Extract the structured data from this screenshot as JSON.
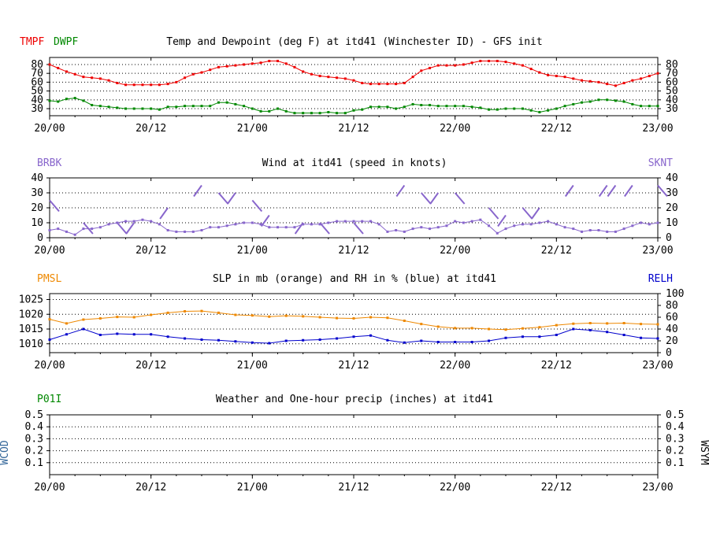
{
  "colors": {
    "temp": "#ee0000",
    "dewpoint": "#008800",
    "wind": "#8866cc",
    "pressure": "#ee8800",
    "rh": "#0000cc",
    "precip": "#008800",
    "wcod": "#336699",
    "axis": "#000000",
    "grid": "#000000"
  },
  "x_ticks": [
    "20/00",
    "20/12",
    "21/00",
    "21/12",
    "22/00",
    "22/12",
    "23/00"
  ],
  "chart_data": [
    {
      "id": "temp",
      "type": "line",
      "title": "Temp and Dewpoint (deg F) at itd41 (Winchester ID) - GFS init",
      "left_labels": [
        "TMPF",
        "DWPF"
      ],
      "right_label": "",
      "x_unit": "hours",
      "x_range": [
        0,
        72
      ],
      "ylim": [
        22,
        88
      ],
      "yticks": [
        30,
        40,
        50,
        60,
        70,
        80
      ],
      "right_yticks": [
        30,
        40,
        50,
        60,
        70,
        80
      ],
      "grid": "dotted",
      "series": [
        {
          "name": "TMPF",
          "color_key": "temp",
          "x": [
            0,
            1,
            2,
            3,
            4,
            5,
            6,
            7,
            8,
            9,
            10,
            11,
            12,
            13,
            14,
            15,
            16,
            17,
            18,
            19,
            20,
            21,
            22,
            23,
            24,
            25,
            26,
            27,
            28,
            29,
            30,
            31,
            32,
            33,
            34,
            35,
            36,
            37,
            38,
            39,
            40,
            41,
            42,
            43,
            44,
            45,
            46,
            47,
            48,
            49,
            50,
            51,
            52,
            53,
            54,
            55,
            56,
            57,
            58,
            59,
            60,
            61,
            62,
            63,
            64,
            65,
            66,
            67,
            68,
            69,
            70,
            71,
            72
          ],
          "values": [
            80,
            76,
            72,
            69,
            66,
            65,
            64,
            62,
            59,
            57,
            57,
            57,
            57,
            57,
            58,
            60,
            65,
            69,
            71,
            74,
            77,
            78,
            79,
            80,
            81,
            82,
            84,
            84,
            81,
            77,
            72,
            69,
            67,
            66,
            65,
            64,
            62,
            59,
            58,
            58,
            58,
            58,
            59,
            66,
            73,
            76,
            79,
            79,
            79,
            80,
            82,
            84,
            84,
            84,
            83,
            81,
            79,
            75,
            71,
            68,
            67,
            66,
            64,
            62,
            61,
            60,
            58,
            56,
            59,
            62,
            64,
            67,
            70
          ]
        },
        {
          "name": "DWPF",
          "color_key": "dewpoint",
          "x": [
            0,
            1,
            2,
            3,
            4,
            5,
            6,
            7,
            8,
            9,
            10,
            11,
            12,
            13,
            14,
            15,
            16,
            17,
            18,
            19,
            20,
            21,
            22,
            23,
            24,
            25,
            26,
            27,
            28,
            29,
            30,
            31,
            32,
            33,
            34,
            35,
            36,
            37,
            38,
            39,
            40,
            41,
            42,
            43,
            44,
            45,
            46,
            47,
            48,
            49,
            50,
            51,
            52,
            53,
            54,
            55,
            56,
            57,
            58,
            59,
            60,
            61,
            62,
            63,
            64,
            65,
            66,
            67,
            68,
            69,
            70,
            71,
            72
          ],
          "values": [
            39,
            38,
            41,
            42,
            39,
            34,
            33,
            32,
            31,
            30,
            30,
            30,
            30,
            29,
            32,
            32,
            33,
            33,
            33,
            33,
            37,
            37,
            35,
            33,
            30,
            27,
            27,
            30,
            27,
            25,
            25,
            25,
            25,
            26,
            25,
            25,
            28,
            29,
            32,
            32,
            32,
            30,
            32,
            35,
            34,
            34,
            33,
            33,
            33,
            33,
            32,
            31,
            29,
            29,
            30,
            30,
            30,
            28,
            26,
            28,
            30,
            33,
            35,
            37,
            38,
            40,
            40,
            39,
            38,
            35,
            33,
            33,
            33
          ]
        }
      ]
    },
    {
      "id": "wind",
      "type": "line",
      "title": "Wind at  itd41 (speed in knots)",
      "left_labels": [
        "BRBK"
      ],
      "right_label": "SKNT",
      "x_unit": "hours",
      "x_range": [
        0,
        72
      ],
      "ylim": [
        0,
        40
      ],
      "yticks": [
        0,
        10,
        20,
        30,
        40
      ],
      "right_yticks": [
        0,
        10,
        20,
        30,
        40
      ],
      "grid": "dotted",
      "series": [
        {
          "name": "SKNT",
          "color_key": "wind",
          "x": [
            0,
            1,
            2,
            3,
            4,
            5,
            6,
            7,
            8,
            9,
            10,
            11,
            12,
            13,
            14,
            15,
            16,
            17,
            18,
            19,
            20,
            21,
            22,
            23,
            24,
            25,
            26,
            27,
            28,
            29,
            30,
            31,
            32,
            33,
            34,
            35,
            36,
            37,
            38,
            39,
            40,
            41,
            42,
            43,
            44,
            45,
            46,
            47,
            48,
            49,
            50,
            51,
            52,
            53,
            54,
            55,
            56,
            57,
            58,
            59,
            60,
            61,
            62,
            63,
            64,
            65,
            66,
            67,
            68,
            69,
            70,
            71,
            72
          ],
          "values": [
            5,
            6,
            4,
            2,
            6,
            6,
            7,
            9,
            10,
            11,
            11,
            12,
            11,
            9,
            5,
            4,
            4,
            4,
            5,
            7,
            7,
            8,
            9,
            10,
            10,
            9,
            7,
            7,
            7,
            7,
            9,
            9,
            9,
            10,
            11,
            11,
            11,
            11,
            11,
            9,
            4,
            5,
            4,
            6,
            7,
            6,
            7,
            8,
            11,
            10,
            11,
            12,
            8,
            3,
            6,
            8,
            9,
            9,
            10,
            11,
            9,
            7,
            6,
            4,
            5,
            5,
            4,
            4,
            6,
            8,
            10,
            9,
            10
          ]
        }
      ],
      "barbs": [
        {
          "x": 0,
          "speed": 25
        },
        {
          "x": 4,
          "speed": 10
        },
        {
          "x": 8,
          "speed": 10
        },
        {
          "x": 10,
          "speed": 10
        },
        {
          "x": 14,
          "speed": 20
        },
        {
          "x": 18,
          "speed": 35
        },
        {
          "x": 20,
          "speed": 30
        },
        {
          "x": 22,
          "speed": 30
        },
        {
          "x": 24,
          "speed": 25
        },
        {
          "x": 26,
          "speed": 15
        },
        {
          "x": 30,
          "speed": 10
        },
        {
          "x": 32,
          "speed": 10
        },
        {
          "x": 36,
          "speed": 10
        },
        {
          "x": 42,
          "speed": 35
        },
        {
          "x": 44,
          "speed": 30
        },
        {
          "x": 46,
          "speed": 30
        },
        {
          "x": 48,
          "speed": 30
        },
        {
          "x": 52,
          "speed": 20
        },
        {
          "x": 54,
          "speed": 15
        },
        {
          "x": 56,
          "speed": 20
        },
        {
          "x": 58,
          "speed": 20
        },
        {
          "x": 62,
          "speed": 35
        },
        {
          "x": 66,
          "speed": 35
        },
        {
          "x": 67,
          "speed": 35
        },
        {
          "x": 69,
          "speed": 35
        },
        {
          "x": 72,
          "speed": 35
        }
      ]
    },
    {
      "id": "slp",
      "type": "line",
      "title": "SLP in mb (orange) and RH in % (blue) at  itd41",
      "left_labels": [
        "PMSL"
      ],
      "right_label": "RELH",
      "x_unit": "hours",
      "x_range": [
        0,
        72
      ],
      "ylim": [
        1007,
        1027
      ],
      "yticks": [
        1010,
        1015,
        1020,
        1025
      ],
      "right_ylim": [
        0,
        100
      ],
      "right_yticks": [
        0,
        20,
        40,
        60,
        80,
        100
      ],
      "grid": "dotted",
      "series": [
        {
          "name": "PMSL",
          "color_key": "pressure",
          "axis": "left",
          "x": [
            0,
            2,
            4,
            6,
            8,
            10,
            12,
            14,
            16,
            18,
            20,
            22,
            24,
            26,
            28,
            30,
            32,
            34,
            36,
            38,
            40,
            42,
            44,
            46,
            48,
            50,
            52,
            54,
            56,
            58,
            60,
            62,
            64,
            66,
            68,
            70,
            72
          ],
          "values": [
            1018.3,
            1016.9,
            1018.2,
            1018.6,
            1019.1,
            1019.0,
            1019.8,
            1020.5,
            1021.0,
            1021.1,
            1020.5,
            1019.8,
            1019.6,
            1019.2,
            1019.5,
            1019.3,
            1019.0,
            1018.7,
            1018.6,
            1019.0,
            1018.8,
            1017.8,
            1016.7,
            1015.8,
            1015.3,
            1015.3,
            1015.0,
            1014.8,
            1015.2,
            1015.6,
            1016.3,
            1016.8,
            1017.0,
            1016.9,
            1017.0,
            1016.7,
            1016.6
          ]
        },
        {
          "name": "RELH",
          "color_key": "rh",
          "axis": "right",
          "x": [
            0,
            2,
            4,
            6,
            8,
            10,
            12,
            14,
            16,
            18,
            20,
            22,
            24,
            26,
            28,
            30,
            32,
            34,
            36,
            38,
            40,
            42,
            44,
            46,
            48,
            50,
            52,
            54,
            56,
            58,
            60,
            62,
            64,
            66,
            68,
            70,
            72
          ],
          "values": [
            22,
            31,
            40,
            30,
            32,
            31,
            31,
            27,
            24,
            22,
            21,
            19,
            17,
            16,
            20,
            21,
            22,
            24,
            27,
            29,
            21,
            17,
            20,
            18,
            18,
            18,
            20,
            25,
            27,
            27,
            30,
            40,
            38,
            35,
            30,
            25,
            24
          ]
        }
      ]
    },
    {
      "id": "precip",
      "type": "line",
      "title": "Weather and One-hour precip (inches) at  itd41",
      "left_labels": [
        "P01I"
      ],
      "right_label": "",
      "left_rotated_label": "WCOD",
      "right_rotated_label": "WSYM",
      "x_unit": "hours",
      "x_range": [
        0,
        72
      ],
      "ylim": [
        0,
        0.5
      ],
      "yticks": [
        0.1,
        0.2,
        0.3,
        0.4,
        0.5
      ],
      "right_yticks": [
        0.1,
        0.2,
        0.3,
        0.4,
        0.5
      ],
      "grid": "dotted",
      "series": []
    }
  ]
}
